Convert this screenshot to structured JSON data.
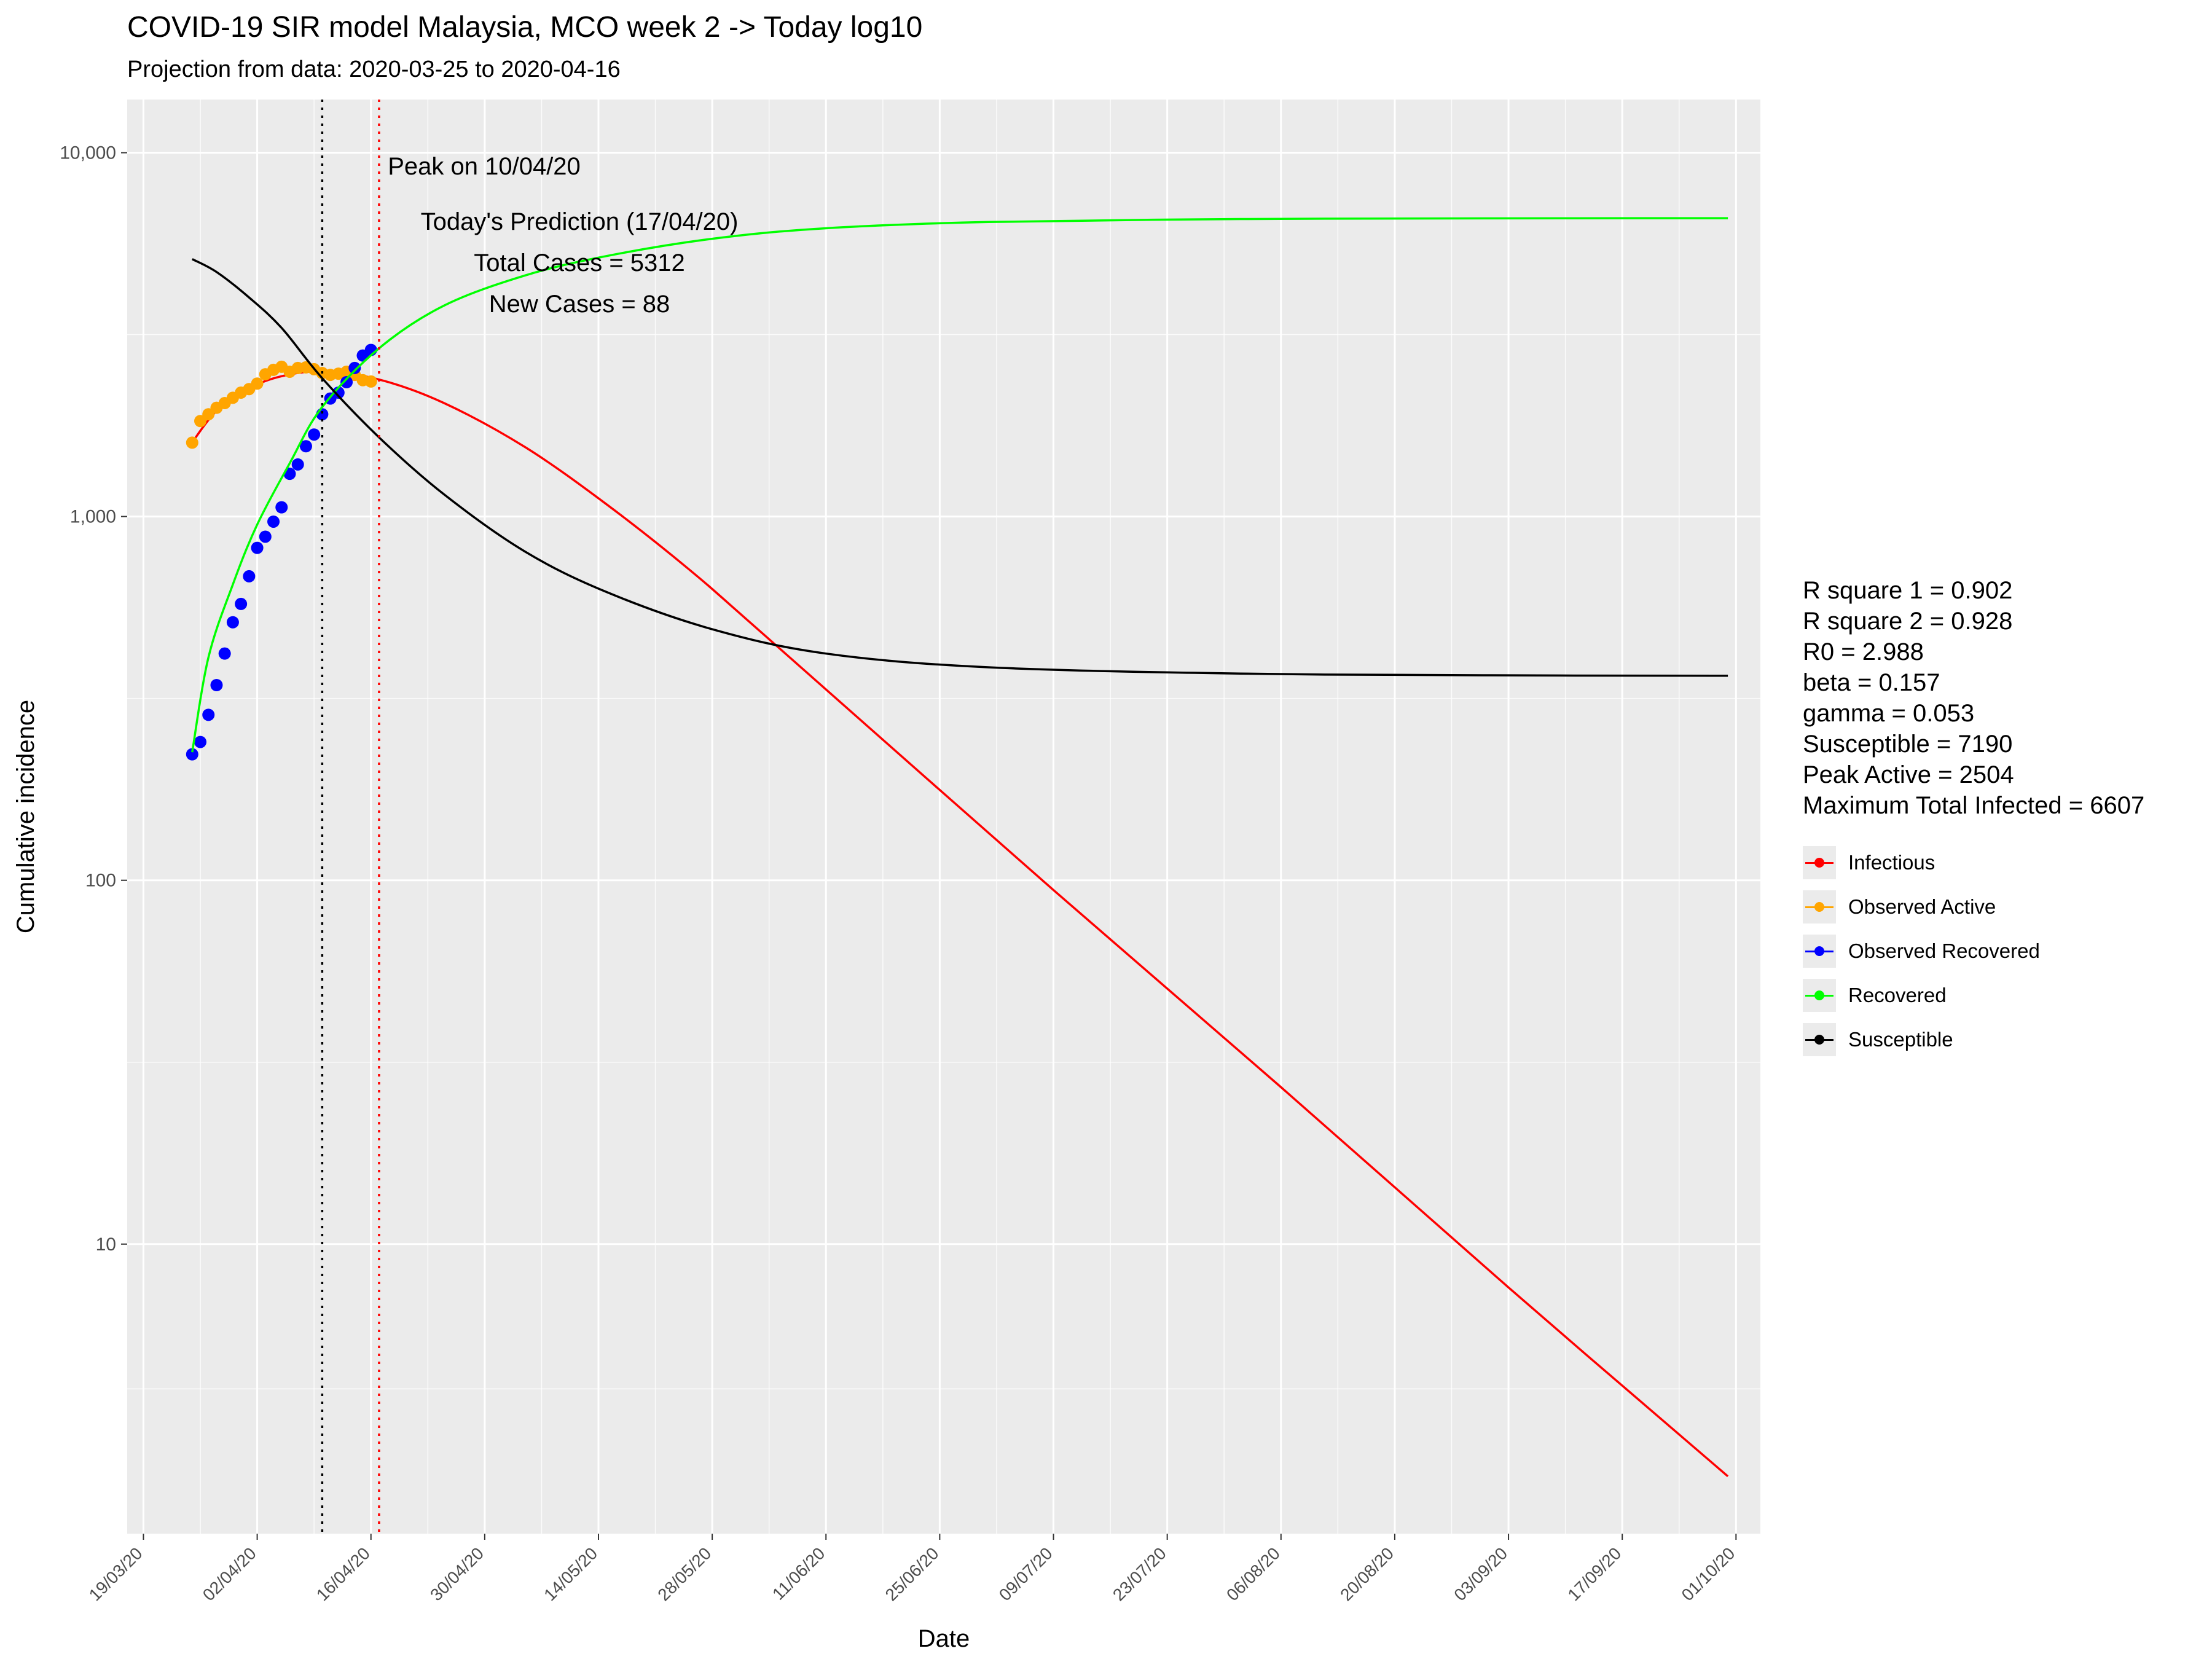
{
  "chart_data": {
    "type": "line",
    "title": "COVID-19 SIR model Malaysia, MCO week 2 -> Today log10",
    "subtitle": "Projection from data: 2020-03-25 to 2020-04-16",
    "xlabel": "Date",
    "ylabel": "Cumulative incidence",
    "y_scale": "log10",
    "ylim": [
      1.6,
      14000
    ],
    "xlim": [
      "2020-03-17",
      "2020-10-04"
    ],
    "grid": true,
    "legend_position": "right",
    "x_ticks": [
      "19/03/20",
      "02/04/20",
      "16/04/20",
      "30/04/20",
      "14/05/20",
      "28/05/20",
      "11/06/20",
      "25/06/20",
      "09/07/20",
      "23/07/20",
      "06/08/20",
      "20/08/20",
      "03/09/20",
      "17/09/20",
      "01/10/20"
    ],
    "x_tick_dates": [
      "2020-03-19",
      "2020-04-02",
      "2020-04-16",
      "2020-04-30",
      "2020-05-14",
      "2020-05-28",
      "2020-06-11",
      "2020-06-25",
      "2020-07-09",
      "2020-07-23",
      "2020-08-06",
      "2020-08-20",
      "2020-09-03",
      "2020-09-17",
      "2020-10-01"
    ],
    "y_ticks": [
      {
        "value": 10,
        "label": "10"
      },
      {
        "value": 100,
        "label": "100"
      },
      {
        "value": 1000,
        "label": "1,000"
      },
      {
        "value": 10000,
        "label": "10,000"
      }
    ],
    "vlines": [
      {
        "date": "2020-04-10",
        "color": "#000000",
        "style": "dotted"
      },
      {
        "date": "2020-04-17",
        "color": "#ff0000",
        "style": "dotted"
      }
    ],
    "annotations": [
      "Peak on 10/04/20",
      "Today's Prediction (17/04/20)",
      "Total Cases = 5312",
      "New Cases = 88"
    ],
    "stats": [
      "R square 1 = 0.902",
      "R square 2 = 0.928",
      "R0 = 2.988",
      "beta = 0.157",
      "gamma = 0.053",
      "Susceptible = 7190",
      "Peak Active = 2504",
      "Maximum Total Infected = 6607"
    ],
    "series": [
      {
        "name": "Infectious",
        "kind": "line",
        "color": "#ff0000",
        "points": [
          [
            "2020-03-25",
            1600
          ],
          [
            "2020-03-28",
            1950
          ],
          [
            "2020-04-01",
            2250
          ],
          [
            "2020-04-05",
            2430
          ],
          [
            "2020-04-10",
            2504
          ],
          [
            "2020-04-17",
            2380
          ],
          [
            "2020-04-25",
            2050
          ],
          [
            "2020-05-05",
            1550
          ],
          [
            "2020-05-15",
            1080
          ],
          [
            "2020-05-25",
            720
          ],
          [
            "2020-06-04",
            460
          ],
          [
            "2020-07-09",
            94
          ],
          [
            "2020-08-06",
            27
          ],
          [
            "2020-09-03",
            7.6
          ],
          [
            "2020-09-30",
            2.3
          ]
        ]
      },
      {
        "name": "Observed Active",
        "kind": "points",
        "color": "#ffa500",
        "points": [
          [
            "2020-03-25",
            1596
          ],
          [
            "2020-03-26",
            1830
          ],
          [
            "2020-03-27",
            1910
          ],
          [
            "2020-03-28",
            1990
          ],
          [
            "2020-03-29",
            2050
          ],
          [
            "2020-03-30",
            2120
          ],
          [
            "2020-03-31",
            2190
          ],
          [
            "2020-04-01",
            2240
          ],
          [
            "2020-04-02",
            2320
          ],
          [
            "2020-04-03",
            2460
          ],
          [
            "2020-04-04",
            2530
          ],
          [
            "2020-04-05",
            2580
          ],
          [
            "2020-04-06",
            2500
          ],
          [
            "2020-04-07",
            2560
          ],
          [
            "2020-04-08",
            2570
          ],
          [
            "2020-04-09",
            2540
          ],
          [
            "2020-04-10",
            2480
          ],
          [
            "2020-04-11",
            2450
          ],
          [
            "2020-04-12",
            2470
          ],
          [
            "2020-04-13",
            2500
          ],
          [
            "2020-04-14",
            2450
          ],
          [
            "2020-04-15",
            2370
          ],
          [
            "2020-04-16",
            2350
          ]
        ]
      },
      {
        "name": "Observed Recovered",
        "kind": "points",
        "color": "#0000ff",
        "points": [
          [
            "2020-03-25",
            222
          ],
          [
            "2020-03-26",
            240
          ],
          [
            "2020-03-27",
            285
          ],
          [
            "2020-03-28",
            344
          ],
          [
            "2020-03-29",
            420
          ],
          [
            "2020-03-30",
            512
          ],
          [
            "2020-03-31",
            575
          ],
          [
            "2020-04-01",
            685
          ],
          [
            "2020-04-02",
            820
          ],
          [
            "2020-04-03",
            880
          ],
          [
            "2020-04-04",
            968
          ],
          [
            "2020-04-05",
            1060
          ],
          [
            "2020-04-06",
            1310
          ],
          [
            "2020-04-07",
            1390
          ],
          [
            "2020-04-08",
            1560
          ],
          [
            "2020-04-09",
            1680
          ],
          [
            "2020-04-10",
            1910
          ],
          [
            "2020-04-11",
            2110
          ],
          [
            "2020-04-12",
            2190
          ],
          [
            "2020-04-13",
            2340
          ],
          [
            "2020-04-14",
            2560
          ],
          [
            "2020-04-15",
            2770
          ],
          [
            "2020-04-16",
            2870
          ]
        ]
      },
      {
        "name": "Recovered",
        "kind": "line",
        "color": "#00ff00",
        "points": [
          [
            "2020-03-25",
            225
          ],
          [
            "2020-03-27",
            410
          ],
          [
            "2020-03-30",
            650
          ],
          [
            "2020-04-02",
            950
          ],
          [
            "2020-04-06",
            1400
          ],
          [
            "2020-04-10",
            2000
          ],
          [
            "2020-04-17",
            2900
          ],
          [
            "2020-04-25",
            3800
          ],
          [
            "2020-05-05",
            4600
          ],
          [
            "2020-05-15",
            5200
          ],
          [
            "2020-05-28",
            5800
          ],
          [
            "2020-06-11",
            6200
          ],
          [
            "2020-07-01",
            6450
          ],
          [
            "2020-08-01",
            6570
          ],
          [
            "2020-09-01",
            6600
          ],
          [
            "2020-09-30",
            6607
          ]
        ]
      },
      {
        "name": "Susceptible",
        "kind": "line",
        "color": "#000000",
        "points": [
          [
            "2020-03-25",
            5100
          ],
          [
            "2020-03-28",
            4700
          ],
          [
            "2020-04-01",
            4000
          ],
          [
            "2020-04-05",
            3300
          ],
          [
            "2020-04-10",
            2400
          ],
          [
            "2020-04-17",
            1650
          ],
          [
            "2020-04-25",
            1150
          ],
          [
            "2020-05-05",
            800
          ],
          [
            "2020-05-15",
            620
          ],
          [
            "2020-05-28",
            490
          ],
          [
            "2020-06-11",
            420
          ],
          [
            "2020-07-01",
            385
          ],
          [
            "2020-08-01",
            370
          ],
          [
            "2020-09-01",
            366
          ],
          [
            "2020-09-30",
            365
          ]
        ]
      }
    ]
  }
}
